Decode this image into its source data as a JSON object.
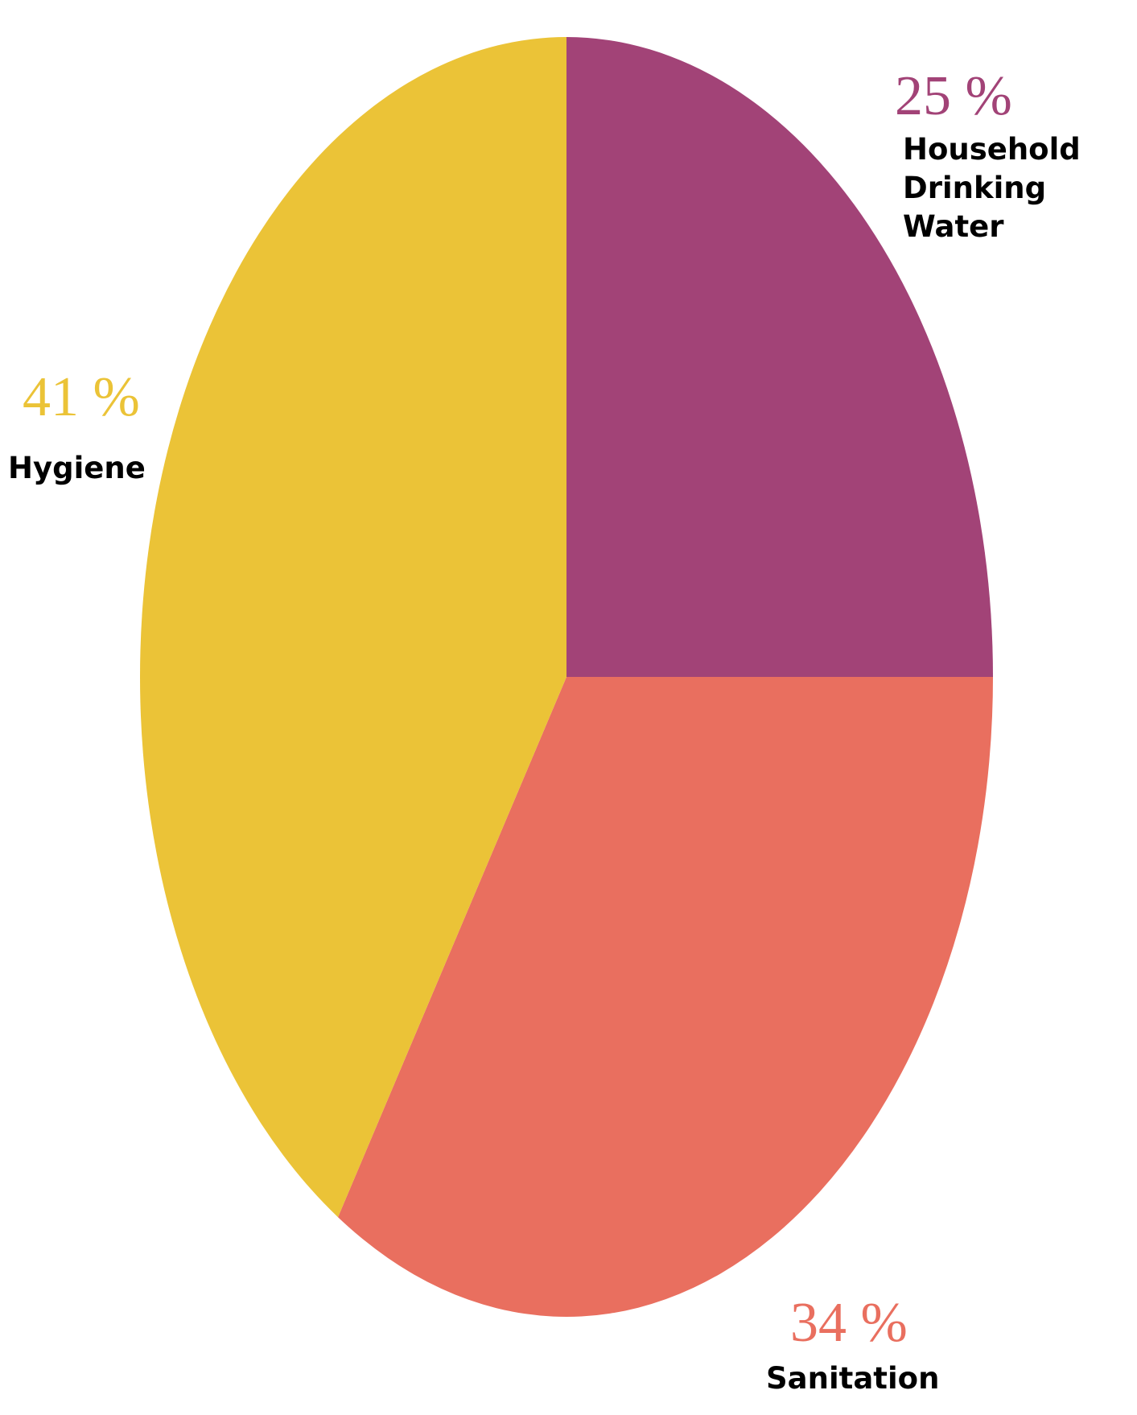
{
  "chart_data": {
    "type": "pie",
    "title": "",
    "start_angle_deg": 0,
    "direction": "clockwise",
    "slices": [
      {
        "label": "Household Drinking Water",
        "label_lines": [
          "Household",
          "Drinking",
          "Water"
        ],
        "value": 25,
        "value_label": "25 %",
        "color": "#A24377"
      },
      {
        "label": "Sanitation",
        "label_lines": [
          "Sanitation"
        ],
        "value": 34,
        "value_label": "34 %",
        "color": "#E96F5F"
      },
      {
        "label": "Hygiene",
        "label_lines": [
          "Hygiene"
        ],
        "value": 41,
        "value_label": "41 %",
        "color": "#EBC337"
      }
    ]
  }
}
